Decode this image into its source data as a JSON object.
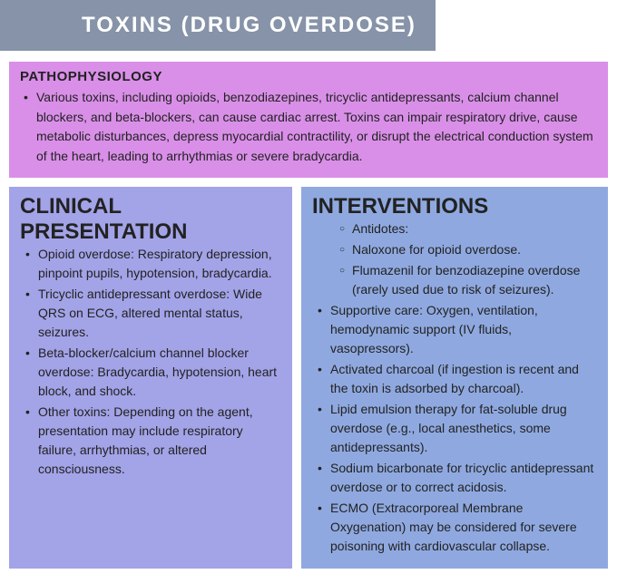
{
  "title": "TOXINS (DRUG OVERDOSE)",
  "colors": {
    "title_bg": "#8693a8",
    "title_fg": "#ffffff",
    "patho_bg": "#d98fe8",
    "clinical_bg": "#a3a3e8",
    "interventions_bg": "#8fa9e0",
    "text": "#222222"
  },
  "typography": {
    "title_fontsize": 24,
    "heading_fontsize": 15,
    "body_fontsize": 14,
    "body_font": "Comic Sans MS",
    "heading_font": "Arial"
  },
  "pathophysiology": {
    "heading": "PATHOPHYSIOLOGY",
    "text": "Various toxins, including opioids, benzodiazepines, tricyclic antidepressants, calcium channel blockers, and beta-blockers, can cause cardiac arrest. Toxins can impair respiratory drive, cause metabolic disturbances, depress myocardial contractility, or disrupt the electrical conduction system of the heart, leading to arrhythmias or severe bradycardia."
  },
  "clinical": {
    "heading": "CLINICAL PRESENTATION",
    "items": [
      "Opioid overdose: Respiratory depression, pinpoint pupils, hypotension, bradycardia.",
      "Tricyclic antidepressant overdose: Wide QRS on ECG, altered mental status, seizures.",
      "Beta-blocker/calcium channel blocker overdose: Bradycardia, hypotension, heart block, and shock.",
      "Other toxins: Depending on the agent, presentation may include respiratory failure, arrhythmias, or altered consciousness."
    ]
  },
  "interventions": {
    "heading": "INTERVENTIONS",
    "antidotes_sub": [
      "Antidotes:",
      "Naloxone for opioid overdose.",
      "Flumazenil for benzodiazepine overdose (rarely used due to risk of seizures)."
    ],
    "items": [
      "Supportive care: Oxygen, ventilation, hemodynamic support (IV fluids, vasopressors).",
      "Activated charcoal (if ingestion is recent and the toxin is adsorbed by charcoal).",
      "Lipid emulsion therapy for fat-soluble drug overdose (e.g., local anesthetics, some antidepressants).",
      "Sodium bicarbonate for tricyclic antidepressant overdose or to correct acidosis.",
      "ECMO (Extracorporeal Membrane Oxygenation) may be considered for severe poisoning with cardiovascular collapse."
    ]
  }
}
